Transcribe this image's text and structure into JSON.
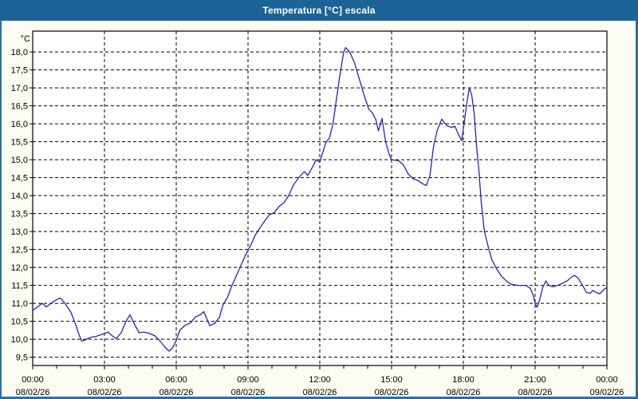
{
  "window": {
    "title": "Temperatura [°C] escala"
  },
  "colors": {
    "titlebar_bg": "#1c6497",
    "titlebar_text": "#ffffff",
    "window_border": "#2e6da4",
    "chart_bg": "#fcfcf2",
    "plot_bg": "#fffffe",
    "grid_color": "#000000",
    "axis_color": "#000000",
    "line_color": "#2323c8"
  },
  "chart_data": {
    "type": "line",
    "title": "Temperatura [°C] escala",
    "ylabel": "°C",
    "xlabel": "",
    "legend": "none",
    "grid": "dashed",
    "x_unit": "hours",
    "x_range": [
      0,
      24
    ],
    "y_plot_range": [
      9.27,
      18.58
    ],
    "y_ticks": [
      18.0,
      17.5,
      17.0,
      16.5,
      16.0,
      15.5,
      15.0,
      14.5,
      14.0,
      13.5,
      13.0,
      12.5,
      12.0,
      11.5,
      11.0,
      10.5,
      10.0,
      9.5
    ],
    "y_tick_labels": [
      "18,0",
      "17,5",
      "17,0",
      "16,5",
      "16,0",
      "15,5",
      "15,0",
      "14,5",
      "14,0",
      "13,5",
      "13,0",
      "12,5",
      "12,0",
      "11,5",
      "11,0",
      "10,5",
      "10,0",
      "9,5"
    ],
    "x_major_ticks_hours": [
      0,
      3,
      6,
      9,
      12,
      15,
      18,
      21,
      24
    ],
    "x_minor_tick_step_hours": 1,
    "x_tick_times": [
      "00:00",
      "03:00",
      "06:00",
      "09:00",
      "12:00",
      "15:00",
      "18:00",
      "21:00",
      "00:00"
    ],
    "x_tick_dates": [
      "08/02/26",
      "08/02/26",
      "08/02/26",
      "08/02/26",
      "08/02/26",
      "08/02/26",
      "08/02/26",
      "08/02/26",
      "09/02/26"
    ],
    "series": [
      {
        "name": "Temperatura",
        "color": "#2323c8",
        "points_hour_degC": [
          [
            0.0,
            10.8
          ],
          [
            0.2,
            10.9
          ],
          [
            0.4,
            11.0
          ],
          [
            0.57,
            10.9
          ],
          [
            0.8,
            11.02
          ],
          [
            1.0,
            11.1
          ],
          [
            1.15,
            11.15
          ],
          [
            1.35,
            11.0
          ],
          [
            1.6,
            10.75
          ],
          [
            1.8,
            10.4
          ],
          [
            1.95,
            10.1
          ],
          [
            2.05,
            9.95
          ],
          [
            2.2,
            9.98
          ],
          [
            2.4,
            10.05
          ],
          [
            2.65,
            10.08
          ],
          [
            2.95,
            10.15
          ],
          [
            3.15,
            10.2
          ],
          [
            3.35,
            10.08
          ],
          [
            3.5,
            10.02
          ],
          [
            3.7,
            10.18
          ],
          [
            3.9,
            10.5
          ],
          [
            4.07,
            10.68
          ],
          [
            4.25,
            10.42
          ],
          [
            4.45,
            10.18
          ],
          [
            4.65,
            10.2
          ],
          [
            4.85,
            10.17
          ],
          [
            5.1,
            10.1
          ],
          [
            5.3,
            9.97
          ],
          [
            5.5,
            9.8
          ],
          [
            5.7,
            9.67
          ],
          [
            5.85,
            9.76
          ],
          [
            6.0,
            9.97
          ],
          [
            6.15,
            10.25
          ],
          [
            6.35,
            10.38
          ],
          [
            6.6,
            10.46
          ],
          [
            6.8,
            10.62
          ],
          [
            7.0,
            10.68
          ],
          [
            7.15,
            10.77
          ],
          [
            7.4,
            10.38
          ],
          [
            7.6,
            10.44
          ],
          [
            7.8,
            10.6
          ],
          [
            7.95,
            10.95
          ],
          [
            8.15,
            11.18
          ],
          [
            8.3,
            11.45
          ],
          [
            8.5,
            11.75
          ],
          [
            8.7,
            12.05
          ],
          [
            8.9,
            12.35
          ],
          [
            9.1,
            12.6
          ],
          [
            9.3,
            12.9
          ],
          [
            9.5,
            13.1
          ],
          [
            9.7,
            13.3
          ],
          [
            9.9,
            13.47
          ],
          [
            10.1,
            13.53
          ],
          [
            10.3,
            13.7
          ],
          [
            10.5,
            13.8
          ],
          [
            10.7,
            14.0
          ],
          [
            10.9,
            14.3
          ],
          [
            11.1,
            14.48
          ],
          [
            11.35,
            14.67
          ],
          [
            11.5,
            14.56
          ],
          [
            11.7,
            14.8
          ],
          [
            11.85,
            15.0
          ],
          [
            12.0,
            14.93
          ],
          [
            12.1,
            15.15
          ],
          [
            12.25,
            15.47
          ],
          [
            12.4,
            15.6
          ],
          [
            12.55,
            16.0
          ],
          [
            12.7,
            16.7
          ],
          [
            12.85,
            17.4
          ],
          [
            13.0,
            18.0
          ],
          [
            13.08,
            18.12
          ],
          [
            13.25,
            18.0
          ],
          [
            13.45,
            17.7
          ],
          [
            13.65,
            17.25
          ],
          [
            13.85,
            16.8
          ],
          [
            14.05,
            16.4
          ],
          [
            14.2,
            16.3
          ],
          [
            14.35,
            16.1
          ],
          [
            14.45,
            15.8
          ],
          [
            14.6,
            16.15
          ],
          [
            14.75,
            15.5
          ],
          [
            14.9,
            15.15
          ],
          [
            15.0,
            15.0
          ],
          [
            15.3,
            14.97
          ],
          [
            15.5,
            14.85
          ],
          [
            15.7,
            14.6
          ],
          [
            15.9,
            14.47
          ],
          [
            16.1,
            14.42
          ],
          [
            16.3,
            14.33
          ],
          [
            16.45,
            14.28
          ],
          [
            16.6,
            14.55
          ],
          [
            16.75,
            15.35
          ],
          [
            16.9,
            15.8
          ],
          [
            17.1,
            16.13
          ],
          [
            17.3,
            15.95
          ],
          [
            17.5,
            15.9
          ],
          [
            17.65,
            15.93
          ],
          [
            17.8,
            15.7
          ],
          [
            17.93,
            15.53
          ],
          [
            18.03,
            16.0
          ],
          [
            18.15,
            16.6
          ],
          [
            18.25,
            17.0
          ],
          [
            18.35,
            16.8
          ],
          [
            18.45,
            16.3
          ],
          [
            18.55,
            15.4
          ],
          [
            18.65,
            14.7
          ],
          [
            18.75,
            13.8
          ],
          [
            18.88,
            13.0
          ],
          [
            19.05,
            12.55
          ],
          [
            19.2,
            12.2
          ],
          [
            19.4,
            11.95
          ],
          [
            19.6,
            11.75
          ],
          [
            19.8,
            11.62
          ],
          [
            20.0,
            11.53
          ],
          [
            20.3,
            11.5
          ],
          [
            20.6,
            11.5
          ],
          [
            20.8,
            11.42
          ],
          [
            20.92,
            11.22
          ],
          [
            21.0,
            11.0
          ],
          [
            21.08,
            10.89
          ],
          [
            21.2,
            11.12
          ],
          [
            21.32,
            11.45
          ],
          [
            21.45,
            11.62
          ],
          [
            21.58,
            11.5
          ],
          [
            21.75,
            11.46
          ],
          [
            21.95,
            11.5
          ],
          [
            22.15,
            11.56
          ],
          [
            22.35,
            11.63
          ],
          [
            22.5,
            11.72
          ],
          [
            22.65,
            11.78
          ],
          [
            22.8,
            11.7
          ],
          [
            23.0,
            11.48
          ],
          [
            23.15,
            11.3
          ],
          [
            23.3,
            11.28
          ],
          [
            23.42,
            11.36
          ],
          [
            23.55,
            11.3
          ],
          [
            23.7,
            11.27
          ],
          [
            23.85,
            11.37
          ],
          [
            24.0,
            11.45
          ]
        ]
      }
    ]
  }
}
